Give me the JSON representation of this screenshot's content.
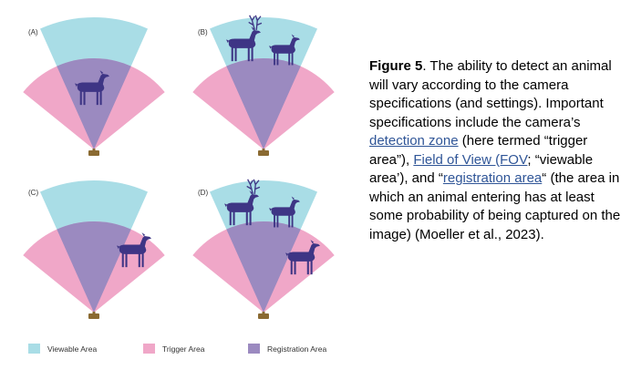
{
  "colors": {
    "viewable": "#a9dde6",
    "trigger": "#f0a7c8",
    "registration": "#9b8ac0",
    "animal": "#3e3585",
    "camera": "#8a6a32",
    "link": "#2f5597"
  },
  "icons": [
    "deer-icon",
    "camera-icon"
  ],
  "panels": [
    {
      "label": "(A)",
      "scene": "fawn-inside"
    },
    {
      "label": "(B)",
      "scene": "deer-in-viewable"
    },
    {
      "label": "(C)",
      "scene": "fawn-outside"
    },
    {
      "label": "(D)",
      "scene": "deer-outside-and-viewable"
    }
  ],
  "legend": [
    {
      "label": "Viewable Area",
      "color": "#a9dde6"
    },
    {
      "label": "Trigger Area",
      "color": "#f0a7c8"
    },
    {
      "label": "Registration Area",
      "color": "#9b8ac0"
    }
  ],
  "caption": {
    "figure_label": "Figure 5",
    "text_1": ". The ability to detect an animal will vary according to the camera specifications (and settings). Important specifications include the camera’s ",
    "link_1": "detection zone",
    "text_2": " (here termed “trigger area”), ",
    "link_2": "Field of View (FOV",
    "text_3": "; “viewable area’), and “",
    "link_3": "registration area",
    "text_4": "“ (the area in which an animal entering has at least some probability of being captured on the image) (Moeller et al., 2023)."
  }
}
